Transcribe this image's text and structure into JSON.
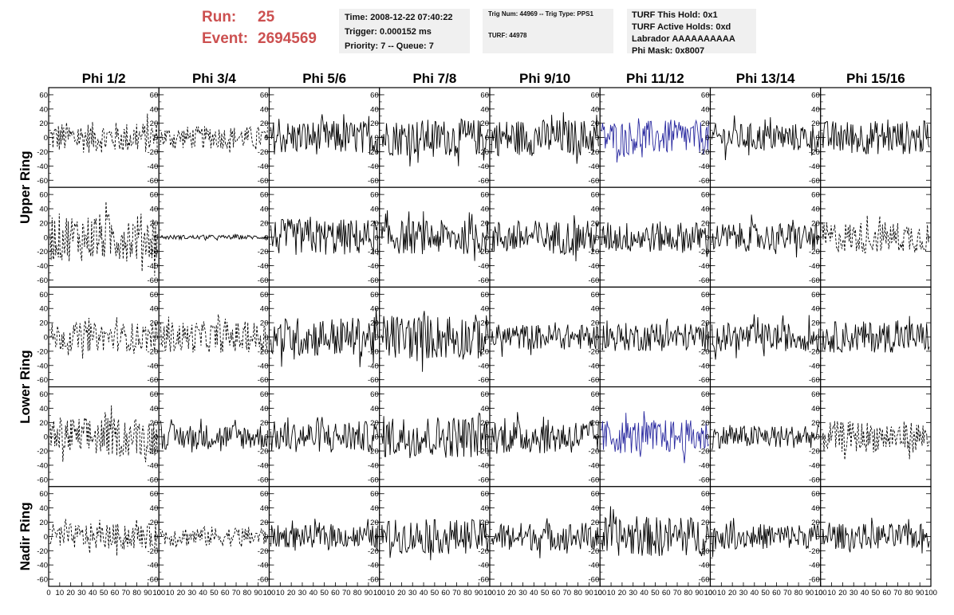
{
  "header": {
    "run_label": "Run:",
    "run_value": "25",
    "event_label": "Event:",
    "event_value": "2694569"
  },
  "info_box_1": {
    "time": "Time: 2008-12-22 07:40:22",
    "trigger": "Trigger: 0.000152 ms",
    "priority": "Priority: 7 -- Queue: 7"
  },
  "info_box_2": {
    "trig": "Trig Num: 44969 -- Trig Type: PPS1",
    "turf": "TURF: 44978"
  },
  "info_box_3": {
    "hold": "TURF This Hold: 0x1",
    "active_holds": "TURF Active Holds: 0xd",
    "labrador": "Labrador AAAAAAAAAA",
    "phi_mask": "Phi Mask: 0x8007"
  },
  "colors": {
    "header_red": "#cc5050",
    "trace": "#000000",
    "highlight_trace": "#2a2aa0",
    "info_bg": "#f0f0f0"
  },
  "chart_data": {
    "type": "line",
    "columns": [
      "Phi 1/2",
      "Phi 3/4",
      "Phi 5/6",
      "Phi 7/8",
      "Phi 9/10",
      "Phi 11/12",
      "Phi 13/14",
      "Phi 15/16"
    ],
    "rows": [
      "Upper Ring",
      "Lower Ring",
      "Nadir Ring"
    ],
    "ylim": [
      -70,
      70
    ],
    "y_ticks": [
      -60,
      -40,
      -20,
      0,
      20,
      40,
      60
    ],
    "xlim": [
      0,
      100
    ],
    "x_tick_labels": [
      "0",
      "10",
      "20",
      "30",
      "40",
      "50",
      "60",
      "70",
      "80",
      "90",
      "100"
    ],
    "panels": [
      [
        {
          "style": "dashed",
          "amp": 22
        },
        {
          "style": "dashed",
          "amp": 16
        },
        {
          "style": "solid",
          "amp": 24
        },
        {
          "style": "solid",
          "amp": 26
        },
        {
          "style": "solid",
          "amp": 26
        },
        {
          "style": "solid",
          "amp": 24,
          "highlight": true
        },
        {
          "style": "solid",
          "amp": 20
        },
        {
          "style": "solid",
          "amp": 24
        }
      ],
      [
        {
          "style": "dashed",
          "amp": 34
        },
        {
          "style": "solid",
          "amp": 3
        },
        {
          "style": "solid",
          "amp": 26
        },
        {
          "style": "solid",
          "amp": 24
        },
        {
          "style": "solid",
          "amp": 24
        },
        {
          "style": "solid",
          "amp": 22
        },
        {
          "style": "solid",
          "amp": 20
        },
        {
          "style": "dashed",
          "amp": 22
        }
      ],
      [
        {
          "style": "dashed",
          "amp": 20
        },
        {
          "style": "dashed",
          "amp": 22
        },
        {
          "style": "solid",
          "amp": 28
        },
        {
          "style": "solid",
          "amp": 32
        },
        {
          "style": "solid",
          "amp": 18
        },
        {
          "style": "solid",
          "amp": 20
        },
        {
          "style": "solid",
          "amp": 20
        },
        {
          "style": "solid",
          "amp": 22
        }
      ],
      [
        {
          "style": "dashed",
          "amp": 28
        },
        {
          "style": "solid",
          "amp": 18
        },
        {
          "style": "solid",
          "amp": 22
        },
        {
          "style": "solid",
          "amp": 30
        },
        {
          "style": "solid",
          "amp": 24
        },
        {
          "style": "solid",
          "amp": 24,
          "highlight": true
        },
        {
          "style": "solid",
          "amp": 16
        },
        {
          "style": "dashed",
          "amp": 22
        }
      ],
      [
        {
          "style": "dashed",
          "amp": 18
        },
        {
          "style": "dashed",
          "amp": 14
        },
        {
          "style": "solid",
          "amp": 16
        },
        {
          "style": "solid",
          "amp": 24
        },
        {
          "style": "solid",
          "amp": 20
        },
        {
          "style": "solid",
          "amp": 28
        },
        {
          "style": "solid",
          "amp": 18
        },
        {
          "style": "solid",
          "amp": 18
        }
      ]
    ]
  }
}
